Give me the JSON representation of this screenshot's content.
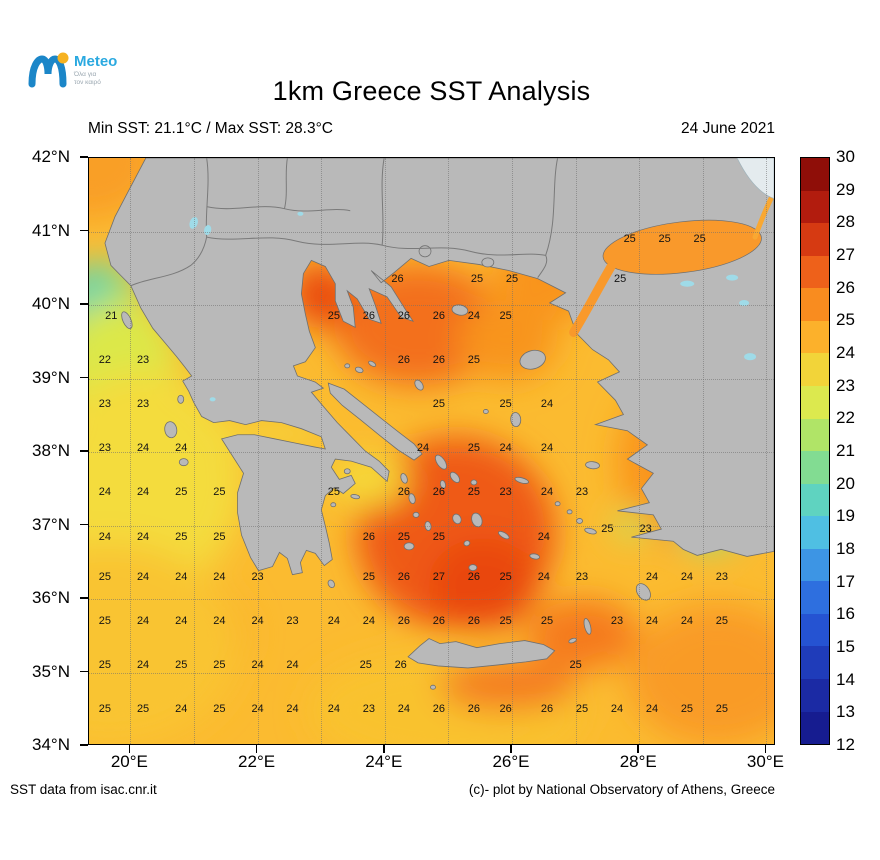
{
  "logo": {
    "brand": "Meteo",
    "tagline1": "Όλα για",
    "tagline2": "τον καιρό"
  },
  "header": {
    "title": "1km Greece SST Analysis",
    "min_max": "Min SST: 21.1°C / Max SST: 28.3°C",
    "date": "24 June 2021"
  },
  "footer": {
    "source": "SST data from isac.cnr.it",
    "credit": "(c)- plot by National Observatory of Athens, Greece"
  },
  "palette": {
    "land": "#b9b9b9",
    "lake": "#9fdbe8",
    "sea_base": "#fbbb30"
  },
  "map": {
    "bounds": {
      "lon_min": 19.35,
      "lon_max": 30.15,
      "lat_min": 34,
      "lat_max": 42
    },
    "lat_ticks": [
      {
        "v": 42,
        "label": "42°N"
      },
      {
        "v": 41,
        "label": "41°N"
      },
      {
        "v": 40,
        "label": "40°N"
      },
      {
        "v": 39,
        "label": "39°N"
      },
      {
        "v": 38,
        "label": "38°N"
      },
      {
        "v": 37,
        "label": "37°N"
      },
      {
        "v": 36,
        "label": "36°N"
      },
      {
        "v": 35,
        "label": "35°N"
      },
      {
        "v": 34,
        "label": "34°N"
      }
    ],
    "lon_ticks": [
      {
        "v": 20,
        "label": "20°E"
      },
      {
        "v": 22,
        "label": "22°E"
      },
      {
        "v": 24,
        "label": "24°E"
      },
      {
        "v": 26,
        "label": "26°E"
      },
      {
        "v": 28,
        "label": "28°E"
      },
      {
        "v": 30,
        "label": "30°E"
      }
    ],
    "grid": {
      "lat_lines": [
        41,
        40,
        39,
        38,
        37,
        36,
        35
      ],
      "lon_lines": [
        20,
        21,
        22,
        23,
        24,
        25,
        26,
        27,
        28,
        29,
        30
      ]
    },
    "temperature_labels": [
      {
        "lat": 40.9,
        "lon": 27.85,
        "t": 25
      },
      {
        "lat": 40.9,
        "lon": 28.4,
        "t": 25
      },
      {
        "lat": 40.9,
        "lon": 28.95,
        "t": 25
      },
      {
        "lat": 40.35,
        "lon": 24.2,
        "t": 26
      },
      {
        "lat": 40.35,
        "lon": 25.45,
        "t": 25
      },
      {
        "lat": 40.35,
        "lon": 26.0,
        "t": 25
      },
      {
        "lat": 40.35,
        "lon": 27.7,
        "t": 25
      },
      {
        "lat": 39.85,
        "lon": 19.7,
        "t": 21
      },
      {
        "lat": 39.85,
        "lon": 23.2,
        "t": 25
      },
      {
        "lat": 39.85,
        "lon": 23.75,
        "t": 26
      },
      {
        "lat": 39.85,
        "lon": 24.3,
        "t": 26
      },
      {
        "lat": 39.85,
        "lon": 24.85,
        "t": 26
      },
      {
        "lat": 39.85,
        "lon": 25.4,
        "t": 24
      },
      {
        "lat": 39.85,
        "lon": 25.9,
        "t": 25
      },
      {
        "lat": 39.25,
        "lon": 19.6,
        "t": 22
      },
      {
        "lat": 39.25,
        "lon": 20.2,
        "t": 23
      },
      {
        "lat": 39.25,
        "lon": 24.3,
        "t": 26
      },
      {
        "lat": 39.25,
        "lon": 24.85,
        "t": 26
      },
      {
        "lat": 39.25,
        "lon": 25.4,
        "t": 25
      },
      {
        "lat": 38.65,
        "lon": 19.6,
        "t": 23
      },
      {
        "lat": 38.65,
        "lon": 20.2,
        "t": 23
      },
      {
        "lat": 38.65,
        "lon": 24.85,
        "t": 25
      },
      {
        "lat": 38.65,
        "lon": 25.9,
        "t": 25
      },
      {
        "lat": 38.65,
        "lon": 26.55,
        "t": 24
      },
      {
        "lat": 38.05,
        "lon": 19.6,
        "t": 23
      },
      {
        "lat": 38.05,
        "lon": 20.2,
        "t": 24
      },
      {
        "lat": 38.05,
        "lon": 20.8,
        "t": 24
      },
      {
        "lat": 38.05,
        "lon": 24.6,
        "t": 24
      },
      {
        "lat": 38.05,
        "lon": 25.4,
        "t": 25
      },
      {
        "lat": 38.05,
        "lon": 25.9,
        "t": 24
      },
      {
        "lat": 38.05,
        "lon": 26.55,
        "t": 24
      },
      {
        "lat": 37.45,
        "lon": 19.6,
        "t": 24
      },
      {
        "lat": 37.45,
        "lon": 20.2,
        "t": 24
      },
      {
        "lat": 37.45,
        "lon": 20.8,
        "t": 25
      },
      {
        "lat": 37.45,
        "lon": 21.4,
        "t": 25
      },
      {
        "lat": 37.45,
        "lon": 23.2,
        "t": 25
      },
      {
        "lat": 37.45,
        "lon": 24.3,
        "t": 26
      },
      {
        "lat": 37.45,
        "lon": 24.85,
        "t": 26
      },
      {
        "lat": 37.45,
        "lon": 25.4,
        "t": 25
      },
      {
        "lat": 37.45,
        "lon": 25.9,
        "t": 23
      },
      {
        "lat": 37.45,
        "lon": 26.55,
        "t": 24
      },
      {
        "lat": 37.45,
        "lon": 27.1,
        "t": 23
      },
      {
        "lat": 36.85,
        "lon": 19.6,
        "t": 24
      },
      {
        "lat": 36.85,
        "lon": 20.2,
        "t": 24
      },
      {
        "lat": 36.85,
        "lon": 20.8,
        "t": 25
      },
      {
        "lat": 36.85,
        "lon": 21.4,
        "t": 25
      },
      {
        "lat": 36.85,
        "lon": 23.75,
        "t": 26
      },
      {
        "lat": 36.85,
        "lon": 24.3,
        "t": 25
      },
      {
        "lat": 36.85,
        "lon": 24.85,
        "t": 25
      },
      {
        "lat": 36.85,
        "lon": 26.5,
        "t": 24
      },
      {
        "lat": 36.95,
        "lon": 27.5,
        "t": 25
      },
      {
        "lat": 36.95,
        "lon": 28.1,
        "t": 23
      },
      {
        "lat": 36.3,
        "lon": 19.6,
        "t": 25
      },
      {
        "lat": 36.3,
        "lon": 20.2,
        "t": 24
      },
      {
        "lat": 36.3,
        "lon": 20.8,
        "t": 24
      },
      {
        "lat": 36.3,
        "lon": 21.4,
        "t": 24
      },
      {
        "lat": 36.3,
        "lon": 22.0,
        "t": 23
      },
      {
        "lat": 36.3,
        "lon": 23.75,
        "t": 25
      },
      {
        "lat": 36.3,
        "lon": 24.3,
        "t": 26
      },
      {
        "lat": 36.3,
        "lon": 24.85,
        "t": 27
      },
      {
        "lat": 36.3,
        "lon": 25.4,
        "t": 26
      },
      {
        "lat": 36.3,
        "lon": 25.9,
        "t": 25
      },
      {
        "lat": 36.3,
        "lon": 26.5,
        "t": 24
      },
      {
        "lat": 36.3,
        "lon": 27.1,
        "t": 23
      },
      {
        "lat": 36.3,
        "lon": 28.2,
        "t": 24
      },
      {
        "lat": 36.3,
        "lon": 28.75,
        "t": 24
      },
      {
        "lat": 36.3,
        "lon": 29.3,
        "t": 23
      },
      {
        "lat": 35.7,
        "lon": 19.6,
        "t": 25
      },
      {
        "lat": 35.7,
        "lon": 20.2,
        "t": 24
      },
      {
        "lat": 35.7,
        "lon": 20.8,
        "t": 24
      },
      {
        "lat": 35.7,
        "lon": 21.4,
        "t": 24
      },
      {
        "lat": 35.7,
        "lon": 22.0,
        "t": 24
      },
      {
        "lat": 35.7,
        "lon": 22.55,
        "t": 23
      },
      {
        "lat": 35.7,
        "lon": 23.2,
        "t": 24
      },
      {
        "lat": 35.7,
        "lon": 23.75,
        "t": 24
      },
      {
        "lat": 35.7,
        "lon": 24.3,
        "t": 26
      },
      {
        "lat": 35.7,
        "lon": 24.85,
        "t": 26
      },
      {
        "lat": 35.7,
        "lon": 25.4,
        "t": 26
      },
      {
        "lat": 35.7,
        "lon": 25.9,
        "t": 25
      },
      {
        "lat": 35.7,
        "lon": 26.55,
        "t": 25
      },
      {
        "lat": 35.7,
        "lon": 27.65,
        "t": 23
      },
      {
        "lat": 35.7,
        "lon": 28.2,
        "t": 24
      },
      {
        "lat": 35.7,
        "lon": 28.75,
        "t": 24
      },
      {
        "lat": 35.7,
        "lon": 29.3,
        "t": 25
      },
      {
        "lat": 35.1,
        "lon": 19.6,
        "t": 25
      },
      {
        "lat": 35.1,
        "lon": 20.2,
        "t": 24
      },
      {
        "lat": 35.1,
        "lon": 20.8,
        "t": 25
      },
      {
        "lat": 35.1,
        "lon": 21.4,
        "t": 25
      },
      {
        "lat": 35.1,
        "lon": 22.0,
        "t": 24
      },
      {
        "lat": 35.1,
        "lon": 22.55,
        "t": 24
      },
      {
        "lat": 35.1,
        "lon": 23.7,
        "t": 25
      },
      {
        "lat": 35.1,
        "lon": 24.25,
        "t": 26
      },
      {
        "lat": 35.1,
        "lon": 27.0,
        "t": 25
      },
      {
        "lat": 34.5,
        "lon": 19.6,
        "t": 25
      },
      {
        "lat": 34.5,
        "lon": 20.2,
        "t": 25
      },
      {
        "lat": 34.5,
        "lon": 20.8,
        "t": 24
      },
      {
        "lat": 34.5,
        "lon": 21.4,
        "t": 25
      },
      {
        "lat": 34.5,
        "lon": 22.0,
        "t": 24
      },
      {
        "lat": 34.5,
        "lon": 22.55,
        "t": 24
      },
      {
        "lat": 34.5,
        "lon": 23.2,
        "t": 24
      },
      {
        "lat": 34.5,
        "lon": 23.75,
        "t": 23
      },
      {
        "lat": 34.5,
        "lon": 24.3,
        "t": 24
      },
      {
        "lat": 34.5,
        "lon": 24.85,
        "t": 26
      },
      {
        "lat": 34.5,
        "lon": 25.4,
        "t": 26
      },
      {
        "lat": 34.5,
        "lon": 25.9,
        "t": 26
      },
      {
        "lat": 34.5,
        "lon": 26.55,
        "t": 26
      },
      {
        "lat": 34.5,
        "lon": 27.1,
        "t": 25
      },
      {
        "lat": 34.5,
        "lon": 27.65,
        "t": 24
      },
      {
        "lat": 34.5,
        "lon": 28.2,
        "t": 24
      },
      {
        "lat": 34.5,
        "lon": 28.75,
        "t": 25
      },
      {
        "lat": 34.5,
        "lon": 29.3,
        "t": 25
      }
    ]
  },
  "colorbar": {
    "min": 12,
    "max": 30,
    "tick_labels": [
      "30",
      "29",
      "28",
      "27",
      "26",
      "25",
      "24",
      "23",
      "22",
      "21",
      "20",
      "19",
      "18",
      "17",
      "16",
      "15",
      "14",
      "13",
      "12"
    ],
    "segments_top_to_bottom": [
      "#8f0e08",
      "#b21c0e",
      "#d63a12",
      "#ee611a",
      "#f98c1f",
      "#fcb12b",
      "#f2d439",
      "#dce94e",
      "#b0e467",
      "#82dc92",
      "#5fd3c0",
      "#4fbfe3",
      "#3d95e4",
      "#2e6fdf",
      "#2553d2",
      "#1f3cba",
      "#1b2aa4",
      "#161c90"
    ]
  }
}
